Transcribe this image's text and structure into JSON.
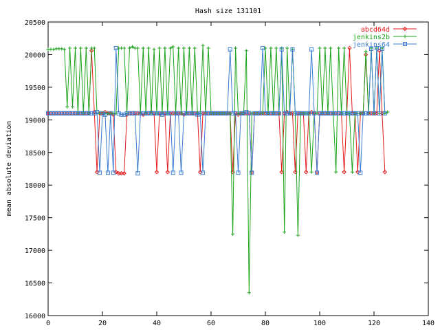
{
  "chart_data": {
    "type": "line",
    "title": "Hash size 131101",
    "xlabel": "",
    "ylabel": "mean absolute deviation",
    "xlim": [
      0,
      140
    ],
    "ylim": [
      16000,
      20500
    ],
    "x_ticks": [
      0,
      20,
      40,
      60,
      80,
      100,
      120,
      140
    ],
    "y_ticks": [
      16000,
      16500,
      17000,
      17500,
      18000,
      18500,
      19000,
      19500,
      20000,
      20500
    ],
    "grid": false,
    "legend_position": "top-right",
    "series": [
      {
        "name": "abcd64d",
        "color": "#e41a1c",
        "marker": "diamond",
        "x": [
          0,
          1,
          2,
          3,
          4,
          5,
          6,
          7,
          8,
          9,
          10,
          11,
          12,
          13,
          14,
          15,
          16,
          17,
          18,
          19,
          20,
          21,
          22,
          23,
          24,
          25,
          26,
          27,
          28,
          29,
          30,
          31,
          32,
          33,
          34,
          35,
          36,
          37,
          38,
          39,
          40,
          41,
          42,
          43,
          44,
          45,
          46,
          47,
          48,
          49,
          50,
          51,
          52,
          53,
          54,
          55,
          56,
          57,
          58,
          59,
          60,
          61,
          62,
          63,
          64,
          65,
          66,
          67,
          68,
          69,
          70,
          71,
          72,
          73,
          74,
          75,
          76,
          77,
          78,
          79,
          80,
          81,
          82,
          83,
          84,
          85,
          86,
          87,
          88,
          89,
          90,
          91,
          92,
          93,
          94,
          95,
          96,
          97,
          98,
          99,
          100,
          101,
          102,
          103,
          104,
          105,
          106,
          107,
          108,
          109,
          110,
          111,
          112,
          113,
          114,
          115,
          116,
          117,
          118,
          119,
          120,
          121,
          122,
          123,
          124
        ],
        "y": [
          19100,
          19100,
          19100,
          19100,
          19100,
          19100,
          19100,
          19100,
          19100,
          19100,
          19100,
          19100,
          19100,
          19100,
          19100,
          19100,
          20060,
          19120,
          18200,
          19100,
          19100,
          19120,
          19100,
          19100,
          19080,
          18200,
          18180,
          18180,
          18180,
          19080,
          19100,
          19100,
          19100,
          19100,
          19100,
          19080,
          19100,
          19100,
          19120,
          19100,
          18200,
          19100,
          19100,
          19100,
          18200,
          19100,
          19100,
          19100,
          19100,
          19100,
          19080,
          19100,
          19100,
          19100,
          19100,
          19100,
          18200,
          19100,
          19100,
          19100,
          19100,
          19100,
          19100,
          19100,
          19100,
          19100,
          19100,
          19100,
          18200,
          19100,
          19080,
          19100,
          19100,
          19100,
          19100,
          18200,
          19100,
          19100,
          19100,
          19100,
          19100,
          19100,
          19100,
          19100,
          19100,
          19100,
          18200,
          19100,
          19120,
          19100,
          19100,
          18200,
          19100,
          19100,
          19100,
          18200,
          19100,
          19120,
          19100,
          18200,
          19100,
          19100,
          19100,
          19100,
          19100,
          19100,
          19100,
          19100,
          19100,
          18200,
          19100,
          20100,
          19100,
          19100,
          18200,
          19100,
          19100,
          20000,
          19100,
          19100,
          19100,
          19100,
          20060,
          19100,
          18200
        ]
      },
      {
        "name": "jenkins2b",
        "color": "#1aa31a",
        "marker": "plus",
        "x": [
          0,
          1,
          2,
          3,
          4,
          5,
          6,
          7,
          8,
          9,
          10,
          11,
          12,
          13,
          14,
          15,
          16,
          17,
          18,
          19,
          20,
          21,
          22,
          23,
          24,
          25,
          26,
          27,
          28,
          29,
          30,
          31,
          32,
          33,
          34,
          35,
          36,
          37,
          38,
          39,
          40,
          41,
          42,
          43,
          44,
          45,
          46,
          47,
          48,
          49,
          50,
          51,
          52,
          53,
          54,
          55,
          56,
          57,
          58,
          59,
          60,
          61,
          62,
          63,
          64,
          65,
          66,
          67,
          68,
          69,
          70,
          71,
          72,
          73,
          74,
          75,
          76,
          77,
          78,
          79,
          80,
          81,
          82,
          83,
          84,
          85,
          86,
          87,
          88,
          89,
          90,
          91,
          92,
          93,
          94,
          95,
          96,
          97,
          98,
          99,
          100,
          101,
          102,
          103,
          104,
          105,
          106,
          107,
          108,
          109,
          110,
          111,
          112,
          113,
          114,
          115,
          116,
          117,
          118,
          119,
          120,
          121,
          122,
          123,
          124,
          125
        ],
        "y": [
          20080,
          20080,
          20080,
          20090,
          20090,
          20090,
          20080,
          19200,
          20100,
          19200,
          20100,
          19100,
          20100,
          19100,
          20100,
          19100,
          20100,
          20100,
          19100,
          19100,
          19100,
          19100,
          19100,
          19100,
          19100,
          19100,
          20100,
          20100,
          20100,
          19100,
          20100,
          20120,
          20100,
          20100,
          19100,
          20100,
          19100,
          20100,
          19100,
          20080,
          19100,
          20100,
          19100,
          20100,
          19100,
          20100,
          20120,
          19100,
          20100,
          19100,
          20100,
          19100,
          20100,
          19100,
          20100,
          19100,
          19100,
          20140,
          19100,
          20100,
          19100,
          19100,
          19100,
          19100,
          19100,
          19100,
          19100,
          19100,
          17250,
          20100,
          19100,
          19100,
          19100,
          20060,
          16350,
          19100,
          19100,
          19100,
          19100,
          19100,
          20100,
          19100,
          20100,
          19100,
          20100,
          19100,
          20100,
          17280,
          20100,
          19100,
          20080,
          19100,
          17230,
          19100,
          19100,
          19100,
          19100,
          18200,
          19100,
          19100,
          20100,
          19100,
          20100,
          19100,
          20100,
          19100,
          18200,
          20100,
          19100,
          20100,
          19100,
          19100,
          18200,
          19100,
          19100,
          19100,
          19100,
          20050,
          19100,
          20100,
          19100,
          20100,
          19100,
          20100,
          19100,
          19120
        ]
      },
      {
        "name": "jenkins64",
        "color": "#3a7cd1",
        "marker": "square",
        "x": [
          0,
          1,
          2,
          3,
          4,
          5,
          6,
          7,
          8,
          9,
          10,
          11,
          12,
          13,
          14,
          15,
          16,
          17,
          18,
          19,
          20,
          21,
          22,
          23,
          24,
          25,
          26,
          27,
          28,
          29,
          30,
          31,
          32,
          33,
          34,
          35,
          36,
          37,
          38,
          39,
          40,
          41,
          42,
          43,
          44,
          45,
          46,
          47,
          48,
          49,
          50,
          51,
          52,
          53,
          54,
          55,
          56,
          57,
          58,
          59,
          60,
          61,
          62,
          63,
          64,
          65,
          66,
          67,
          68,
          69,
          70,
          71,
          72,
          73,
          74,
          75,
          76,
          77,
          78,
          79,
          80,
          81,
          82,
          83,
          84,
          85,
          86,
          87,
          88,
          89,
          90,
          91,
          92,
          93,
          94,
          95,
          96,
          97,
          98,
          99,
          100,
          101,
          102,
          103,
          104,
          105,
          106,
          107,
          108,
          109,
          110,
          111,
          112,
          113,
          114,
          115,
          116,
          117,
          118,
          119,
          120,
          121,
          122,
          123,
          124
        ],
        "y": [
          19100,
          19100,
          19100,
          19100,
          19100,
          19100,
          19100,
          19100,
          19100,
          19100,
          19100,
          19100,
          19100,
          19100,
          19100,
          19100,
          19100,
          19100,
          19120,
          18190,
          19100,
          19080,
          18190,
          19100,
          18190,
          20100,
          19100,
          19080,
          19080,
          19100,
          19100,
          19100,
          19100,
          18180,
          19100,
          19100,
          19100,
          19100,
          19100,
          19100,
          19100,
          19100,
          19080,
          19100,
          19100,
          19100,
          18190,
          19100,
          19100,
          18190,
          19100,
          19100,
          19100,
          19100,
          19100,
          19080,
          19100,
          18190,
          19100,
          19100,
          19100,
          19100,
          19100,
          19100,
          19100,
          19100,
          19100,
          20080,
          19100,
          19100,
          18190,
          19100,
          19100,
          19120,
          19100,
          18190,
          19100,
          19100,
          19100,
          20100,
          19100,
          19100,
          19100,
          19100,
          19100,
          19100,
          20080,
          19100,
          19100,
          19100,
          20080,
          19100,
          19100,
          19100,
          19100,
          19100,
          19100,
          20080,
          19100,
          18190,
          19100,
          19100,
          19100,
          19100,
          19100,
          19100,
          19100,
          19100,
          19100,
          19100,
          19100,
          19100,
          19100,
          19100,
          19100,
          18190,
          19100,
          19100,
          19100,
          20090,
          19100,
          20100,
          19100,
          20090,
          19100
        ]
      }
    ]
  }
}
